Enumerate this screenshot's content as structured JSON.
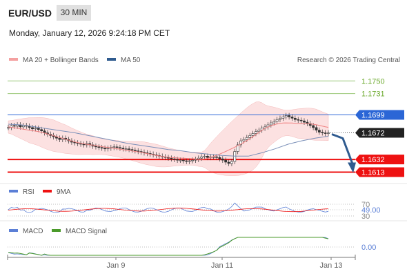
{
  "header": {
    "symbol": "EUR/USD",
    "timeframe": "30 MIN",
    "timestamp": "Monday, January 12, 2026 9:24:18 PM CET"
  },
  "main_chart": {
    "legend": [
      {
        "label": "MA 20 + Bollinger Bands",
        "color": "#f4a0a0"
      },
      {
        "label": "MA 50",
        "color": "#2f5b8f"
      }
    ],
    "credit": "Research © 2026 Trading Central",
    "ylim": [
      1.16,
      1.177
    ],
    "levels": [
      {
        "value": "1.1750",
        "kind": "resistance-light",
        "color": "#9cc97a",
        "label_color": "#6aa82a"
      },
      {
        "value": "1.1731",
        "kind": "resistance-light",
        "color": "#9cc97a",
        "label_color": "#6aa82a"
      },
      {
        "value": "1.1699",
        "kind": "pivot",
        "color": "#2b66d6",
        "label_color": "#ffffff",
        "box": "#2b66d6"
      },
      {
        "value": "1.1672",
        "kind": "last-price",
        "color": "#222222",
        "label_color": "#ffffff",
        "box": "#222222"
      },
      {
        "value": "1.1632",
        "kind": "support",
        "color": "#ee1111",
        "label_color": "#ffffff",
        "box": "#ee1111"
      },
      {
        "value": "1.1613",
        "kind": "support",
        "color": "#ee1111",
        "label_color": "#ffffff",
        "box": "#ee1111"
      }
    ],
    "arrow": {
      "from": 1.167,
      "to": 1.1613,
      "color": "#2f5b8f"
    }
  },
  "rsi_panel": {
    "legend": [
      {
        "label": "RSI",
        "color": "#5b7fd6"
      },
      {
        "label": "9MA",
        "color": "#ee1111"
      }
    ],
    "levels": [
      "70",
      "49.00",
      "30"
    ]
  },
  "macd_panel": {
    "legend": [
      {
        "label": "MACD",
        "color": "#5b7fd6"
      },
      {
        "label": "MACD Signal",
        "color": "#4a9a2a"
      }
    ],
    "level": "0.00"
  },
  "x_axis": {
    "ticks": [
      "Jan 9",
      "Jan 11",
      "Jan 13"
    ]
  },
  "chart_data": {
    "type": "candlestick",
    "series": [
      {
        "name": "EUR/USD",
        "values": [
          1.168,
          1.1683,
          1.1682,
          1.1684,
          1.1681,
          1.1683,
          1.1682,
          1.168,
          1.1678,
          1.1679,
          1.1677,
          1.1675,
          1.1672,
          1.167,
          1.1668,
          1.1666,
          1.1664,
          1.1662,
          1.1664,
          1.1662,
          1.166,
          1.1658,
          1.1657,
          1.1656,
          1.1655,
          1.1654,
          1.1656,
          1.1654,
          1.1652,
          1.1651,
          1.165,
          1.1649,
          1.1648,
          1.1649,
          1.165,
          1.1651,
          1.165,
          1.1649,
          1.1648,
          1.1648,
          1.1647,
          1.1646,
          1.1645,
          1.1644,
          1.1643,
          1.1642,
          1.1641,
          1.164,
          1.1639,
          1.1638,
          1.1637,
          1.1636,
          1.1635,
          1.1634,
          1.1633,
          1.1632,
          1.1631,
          1.1631,
          1.163,
          1.1629,
          1.163,
          1.1631,
          1.1632,
          1.1634,
          1.1636,
          1.1637,
          1.1635,
          1.1636,
          1.1636,
          1.1635,
          1.1633,
          1.1631,
          1.1628,
          1.1626,
          1.1629,
          1.1644,
          1.1654,
          1.166,
          1.1662,
          1.1665,
          1.1668,
          1.1671,
          1.1674,
          1.1676,
          1.1679,
          1.1681,
          1.1684,
          1.1687,
          1.1689,
          1.1692,
          1.1694,
          1.1696,
          1.1698,
          1.1696,
          1.1694,
          1.1692,
          1.1691,
          1.169,
          1.1688,
          1.1686,
          1.1683,
          1.168,
          1.1676,
          1.1673,
          1.1672,
          1.1671,
          1.1672
        ]
      },
      {
        "name": "MA 50",
        "values": [
          1.1685,
          1.1684,
          1.1681,
          1.1678,
          1.1675,
          1.1672,
          1.1668,
          1.1664,
          1.166,
          1.1656,
          1.1653,
          1.165,
          1.1647,
          1.1645,
          1.1642,
          1.164,
          1.1638,
          1.1637,
          1.1637,
          1.1642,
          1.1648,
          1.1655,
          1.166,
          1.1664,
          1.1667
        ]
      }
    ]
  }
}
